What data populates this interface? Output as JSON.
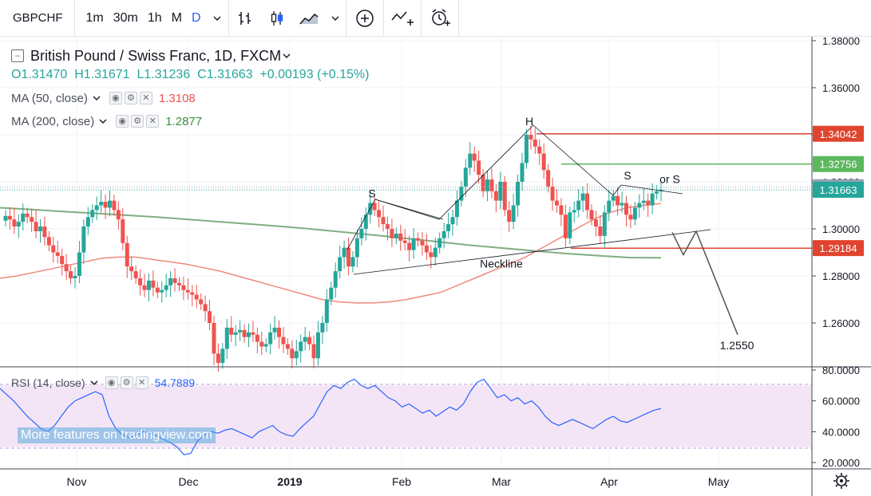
{
  "toolbar": {
    "symbol": "GBPCHF",
    "timeframes": [
      "1m",
      "30m",
      "1h",
      "M",
      "D"
    ],
    "active_timeframe": "D",
    "icons": [
      "chevron-down-icon",
      "bar-chart-icon",
      "candle-chart-icon",
      "area-chart-icon",
      "chevron-down-icon",
      "add-indicator-icon",
      "drawing-icon",
      "alert-icon"
    ]
  },
  "legend": {
    "title": "British Pound / Swiss Franc, 1D, FXCM",
    "ohlc": {
      "o_label": "O",
      "o": "1.31470",
      "h_label": "H",
      "h": "1.31671",
      "l_label": "L",
      "l": "1.31236",
      "c_label": "C",
      "c": "1.31663",
      "change": "+0.00193 (+0.15%)"
    },
    "ma50": {
      "label": "MA (50, close)",
      "value": "1.3108",
      "color": "#ef5350"
    },
    "ma200": {
      "label": "MA (200, close)",
      "value": "1.2877",
      "color": "#388e3c"
    }
  },
  "rsi_legend": {
    "label": "RSI (14, close)",
    "value": "54.7889",
    "color": "#2962ff"
  },
  "watermark": "More features on tradingview.com",
  "colors": {
    "up": "#26a69a",
    "down": "#ef5350",
    "ma50": "#ef8a80",
    "ma200": "#7fae82",
    "rsi": "#2962ff",
    "rsi_band": "#f3e5f5"
  },
  "chart_data": {
    "type": "candlestick",
    "title": "British Pound / Swiss Franc, 1D, FXCM",
    "price_axis": {
      "ticks": [
        "1.38000",
        "1.36000",
        "1.34000",
        "1.32000",
        "1.30000",
        "1.28000",
        "1.26000"
      ],
      "range": [
        1.2405,
        1.3815
      ]
    },
    "time_axis": {
      "labels": [
        "Nov",
        "Dec",
        "2019",
        "Feb",
        "Mar",
        "Apr",
        "May"
      ]
    },
    "price_labels": [
      {
        "value": "1.34042",
        "color": "#e0442e"
      },
      {
        "value": "1.32756",
        "color": "#5cb85c"
      },
      {
        "value": "1.31770",
        "color": "#90a4ae"
      },
      {
        "value": "1.31663",
        "color": "#26a69a"
      },
      {
        "value": "1.29184",
        "color": "#e0442e"
      }
    ],
    "horizontal_levels": [
      {
        "value": 1.34042,
        "color": "#e0442e"
      },
      {
        "value": 1.32756,
        "color": "#5cb85c"
      },
      {
        "value": 1.2918,
        "color": "#e0442e"
      }
    ],
    "annotations": [
      {
        "text": "S",
        "value": 1.3134
      },
      {
        "text": "H",
        "value": 1.344
      },
      {
        "text": "S",
        "value": 1.321
      },
      {
        "text": "or S",
        "value": 1.3195
      },
      {
        "text": "Neckline",
        "value": 1.2835
      },
      {
        "text": "1.2550",
        "value": 1.255
      }
    ],
    "closes": [
      1.3055,
      1.304,
      1.301,
      1.303,
      1.3065,
      1.305,
      1.303,
      1.299,
      1.301,
      1.2965,
      1.293,
      1.29,
      1.2885,
      1.285,
      1.282,
      1.279,
      1.28,
      1.29,
      1.301,
      1.305,
      1.308,
      1.31,
      1.3115,
      1.309,
      1.312,
      1.308,
      1.304,
      1.294,
      1.284,
      1.282,
      1.279,
      1.276,
      1.274,
      1.278,
      1.275,
      1.273,
      1.274,
      1.276,
      1.279,
      1.277,
      1.276,
      1.274,
      1.273,
      1.272,
      1.27,
      1.268,
      1.265,
      1.26,
      1.247,
      1.243,
      1.249,
      1.258,
      1.255,
      1.256,
      1.257,
      1.254,
      1.256,
      1.255,
      1.252,
      1.25,
      1.251,
      1.256,
      1.258,
      1.254,
      1.251,
      1.249,
      1.245,
      1.248,
      1.252,
      1.254,
      1.251,
      1.245,
      1.256,
      1.26,
      1.27,
      1.275,
      1.282,
      1.288,
      1.292,
      1.284,
      1.288,
      1.296,
      1.3,
      1.306,
      1.311,
      1.308,
      1.305,
      1.302,
      1.3,
      1.296,
      1.298,
      1.295,
      1.294,
      1.291,
      1.296,
      1.295,
      1.293,
      1.29,
      1.288,
      1.292,
      1.296,
      1.299,
      1.302,
      1.305,
      1.312,
      1.318,
      1.326,
      1.332,
      1.329,
      1.323,
      1.316,
      1.321,
      1.316,
      1.312,
      1.32,
      1.308,
      1.303,
      1.31,
      1.32,
      1.328,
      1.34,
      1.338,
      1.335,
      1.332,
      1.325,
      1.318,
      1.312,
      1.31,
      1.306,
      1.296,
      1.307,
      1.308,
      1.312,
      1.315,
      1.308,
      1.304,
      1.301,
      1.297,
      1.307,
      1.312,
      1.314,
      1.31,
      1.311,
      1.306,
      1.304,
      1.309,
      1.311,
      1.312,
      1.31,
      1.315,
      1.316,
      1.3166
    ],
    "ma50": [
      1.279,
      1.28,
      1.2815,
      1.283,
      1.2845,
      1.286,
      1.2875,
      1.288,
      1.288,
      1.287,
      1.286,
      1.285,
      1.2835,
      1.282,
      1.28,
      1.278,
      1.276,
      1.274,
      1.272,
      1.27,
      1.269,
      1.2685,
      1.2685,
      1.269,
      1.27,
      1.2715,
      1.273,
      1.276,
      1.279,
      1.282,
      1.285,
      1.288,
      1.292,
      1.296,
      1.3,
      1.304,
      1.307,
      1.309,
      1.31,
      1.3108
    ],
    "ma200": [
      1.309,
      1.3082,
      1.3074,
      1.3066,
      1.3058,
      1.305,
      1.304,
      1.303,
      1.302,
      1.301,
      1.2998,
      1.2985,
      1.2972,
      1.2958,
      1.2944,
      1.293,
      1.2918,
      1.2906,
      1.2895,
      1.2886,
      1.2878,
      1.2877
    ],
    "rsi": {
      "ticks": [
        "80.0000",
        "60.0000",
        "40.0000",
        "20.0000"
      ],
      "overbought": 70,
      "oversold": 30,
      "values": [
        68,
        64,
        60,
        55,
        50,
        46,
        42,
        40,
        44,
        50,
        56,
        60,
        62,
        64,
        66,
        64,
        50,
        42,
        38,
        36,
        38,
        40,
        39,
        37,
        35,
        33,
        30,
        25,
        26,
        34,
        38,
        40,
        39,
        41,
        42,
        40,
        38,
        36,
        40,
        42,
        44,
        40,
        38,
        37,
        42,
        46,
        50,
        58,
        66,
        70,
        68,
        72,
        74,
        70,
        68,
        70,
        66,
        62,
        60,
        56,
        58,
        55,
        52,
        54,
        50,
        53,
        56,
        54,
        58,
        66,
        72,
        74,
        68,
        62,
        64,
        60,
        62,
        58,
        60,
        56,
        50,
        46,
        44,
        46,
        48,
        46,
        44,
        42,
        45,
        48,
        50,
        47,
        46,
        48,
        50,
        52,
        54,
        55
      ]
    },
    "projection": {
      "points": [
        1.2985,
        1.289,
        1.299,
        1.255
      ]
    }
  }
}
